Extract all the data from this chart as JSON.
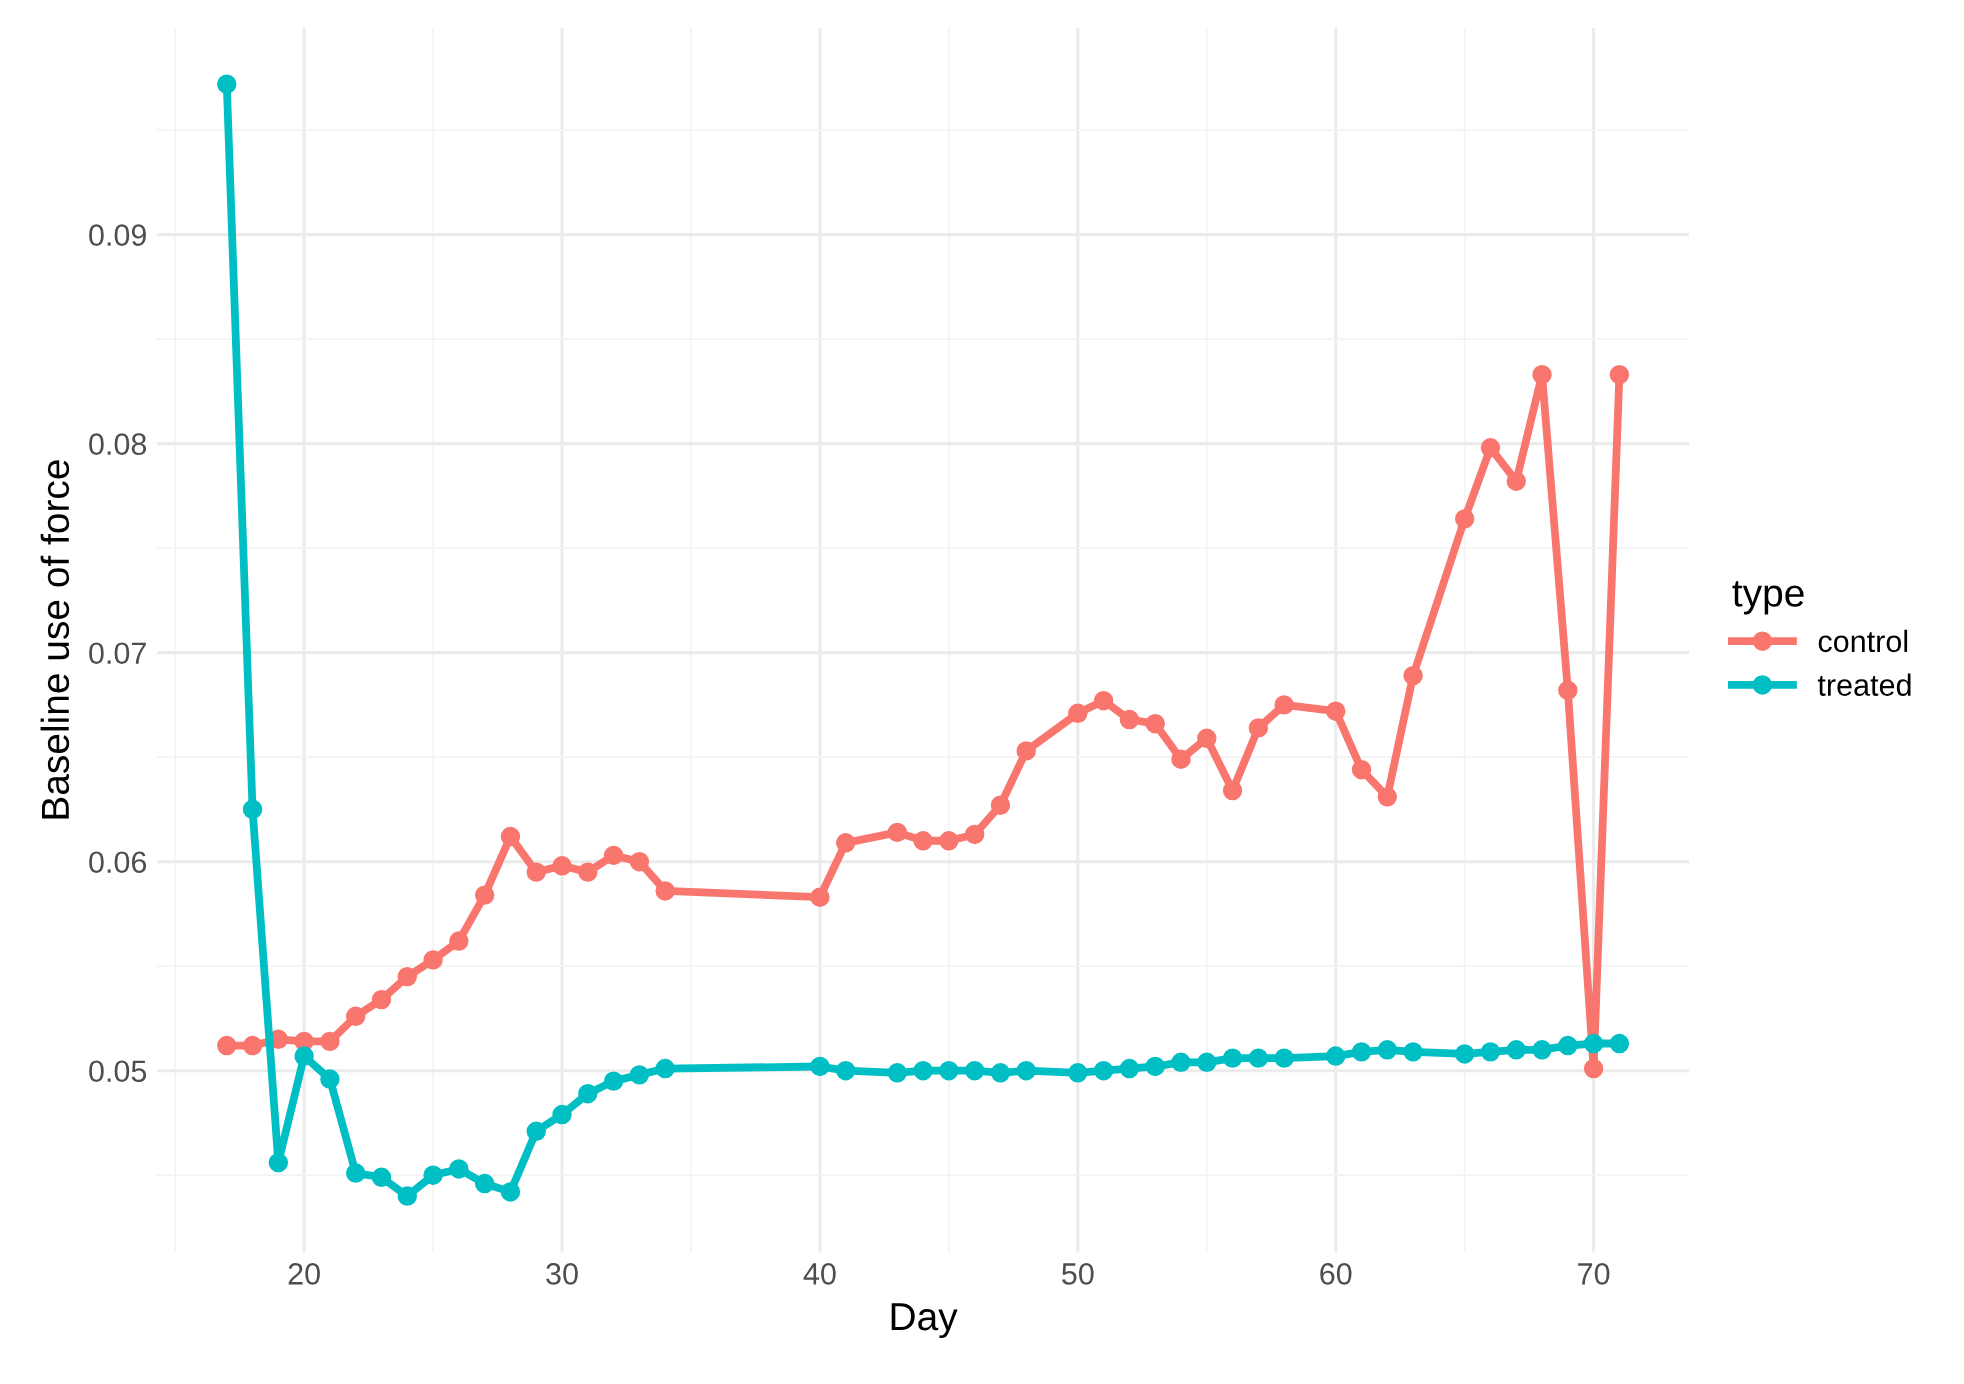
{
  "chart_data": {
    "type": "line",
    "xlabel": "Day",
    "ylabel": "Baseline use of force",
    "legend_title": "type",
    "legend": "right",
    "grid": true,
    "marker": "circle",
    "line_style": "solid",
    "xlim": [
      14.3,
      73.7
    ],
    "ylim": [
      0.0413,
      0.0999
    ],
    "xticks": [
      20,
      30,
      40,
      50,
      60,
      70
    ],
    "yticks": [
      0.05,
      0.06,
      0.07,
      0.08,
      0.09
    ],
    "series": [
      {
        "name": "control",
        "color": "#f8766d",
        "x": [
          17,
          18,
          19,
          20,
          21,
          22,
          23,
          24,
          25,
          26,
          27,
          28,
          29,
          30,
          31,
          32,
          33,
          34,
          40,
          41,
          43,
          44,
          45,
          46,
          47,
          48,
          50,
          51,
          52,
          53,
          54,
          55,
          56,
          57,
          58,
          60,
          61,
          62,
          63,
          65,
          66,
          67,
          68,
          69,
          70,
          71
        ],
        "values": [
          0.0512,
          0.0512,
          0.0515,
          0.0514,
          0.0514,
          0.0526,
          0.0534,
          0.0545,
          0.0553,
          0.0562,
          0.0584,
          0.0612,
          0.0595,
          0.0598,
          0.0595,
          0.0603,
          0.06,
          0.0586,
          0.0583,
          0.0609,
          0.0614,
          0.061,
          0.061,
          0.0613,
          0.0627,
          0.0653,
          0.0671,
          0.0677,
          0.0668,
          0.0666,
          0.0649,
          0.0659,
          0.0634,
          0.0664,
          0.0675,
          0.0672,
          0.0644,
          0.0631,
          0.0689,
          0.0764,
          0.0798,
          0.0782,
          0.0833,
          0.0682,
          0.0501,
          0.0833
        ]
      },
      {
        "name": "treated",
        "color": "#00bfc4",
        "x": [
          17,
          18,
          19,
          20,
          21,
          22,
          23,
          24,
          25,
          26,
          27,
          28,
          29,
          30,
          31,
          32,
          33,
          34,
          40,
          41,
          43,
          44,
          45,
          46,
          47,
          48,
          50,
          51,
          52,
          53,
          54,
          55,
          56,
          57,
          58,
          60,
          61,
          62,
          63,
          65,
          66,
          67,
          68,
          69,
          70,
          71
        ],
        "values": [
          0.0972,
          0.0625,
          0.0456,
          0.0507,
          0.0496,
          0.0451,
          0.0449,
          0.044,
          0.045,
          0.0453,
          0.0446,
          0.0442,
          0.0471,
          0.0479,
          0.0489,
          0.0495,
          0.0498,
          0.0501,
          0.0502,
          0.05,
          0.0499,
          0.05,
          0.05,
          0.05,
          0.0499,
          0.05,
          0.0499,
          0.05,
          0.0501,
          0.0502,
          0.0504,
          0.0504,
          0.0506,
          0.0506,
          0.0506,
          0.0507,
          0.0509,
          0.051,
          0.0509,
          0.0508,
          0.0509,
          0.051,
          0.051,
          0.0512,
          0.0513,
          0.0513
        ]
      }
    ]
  }
}
